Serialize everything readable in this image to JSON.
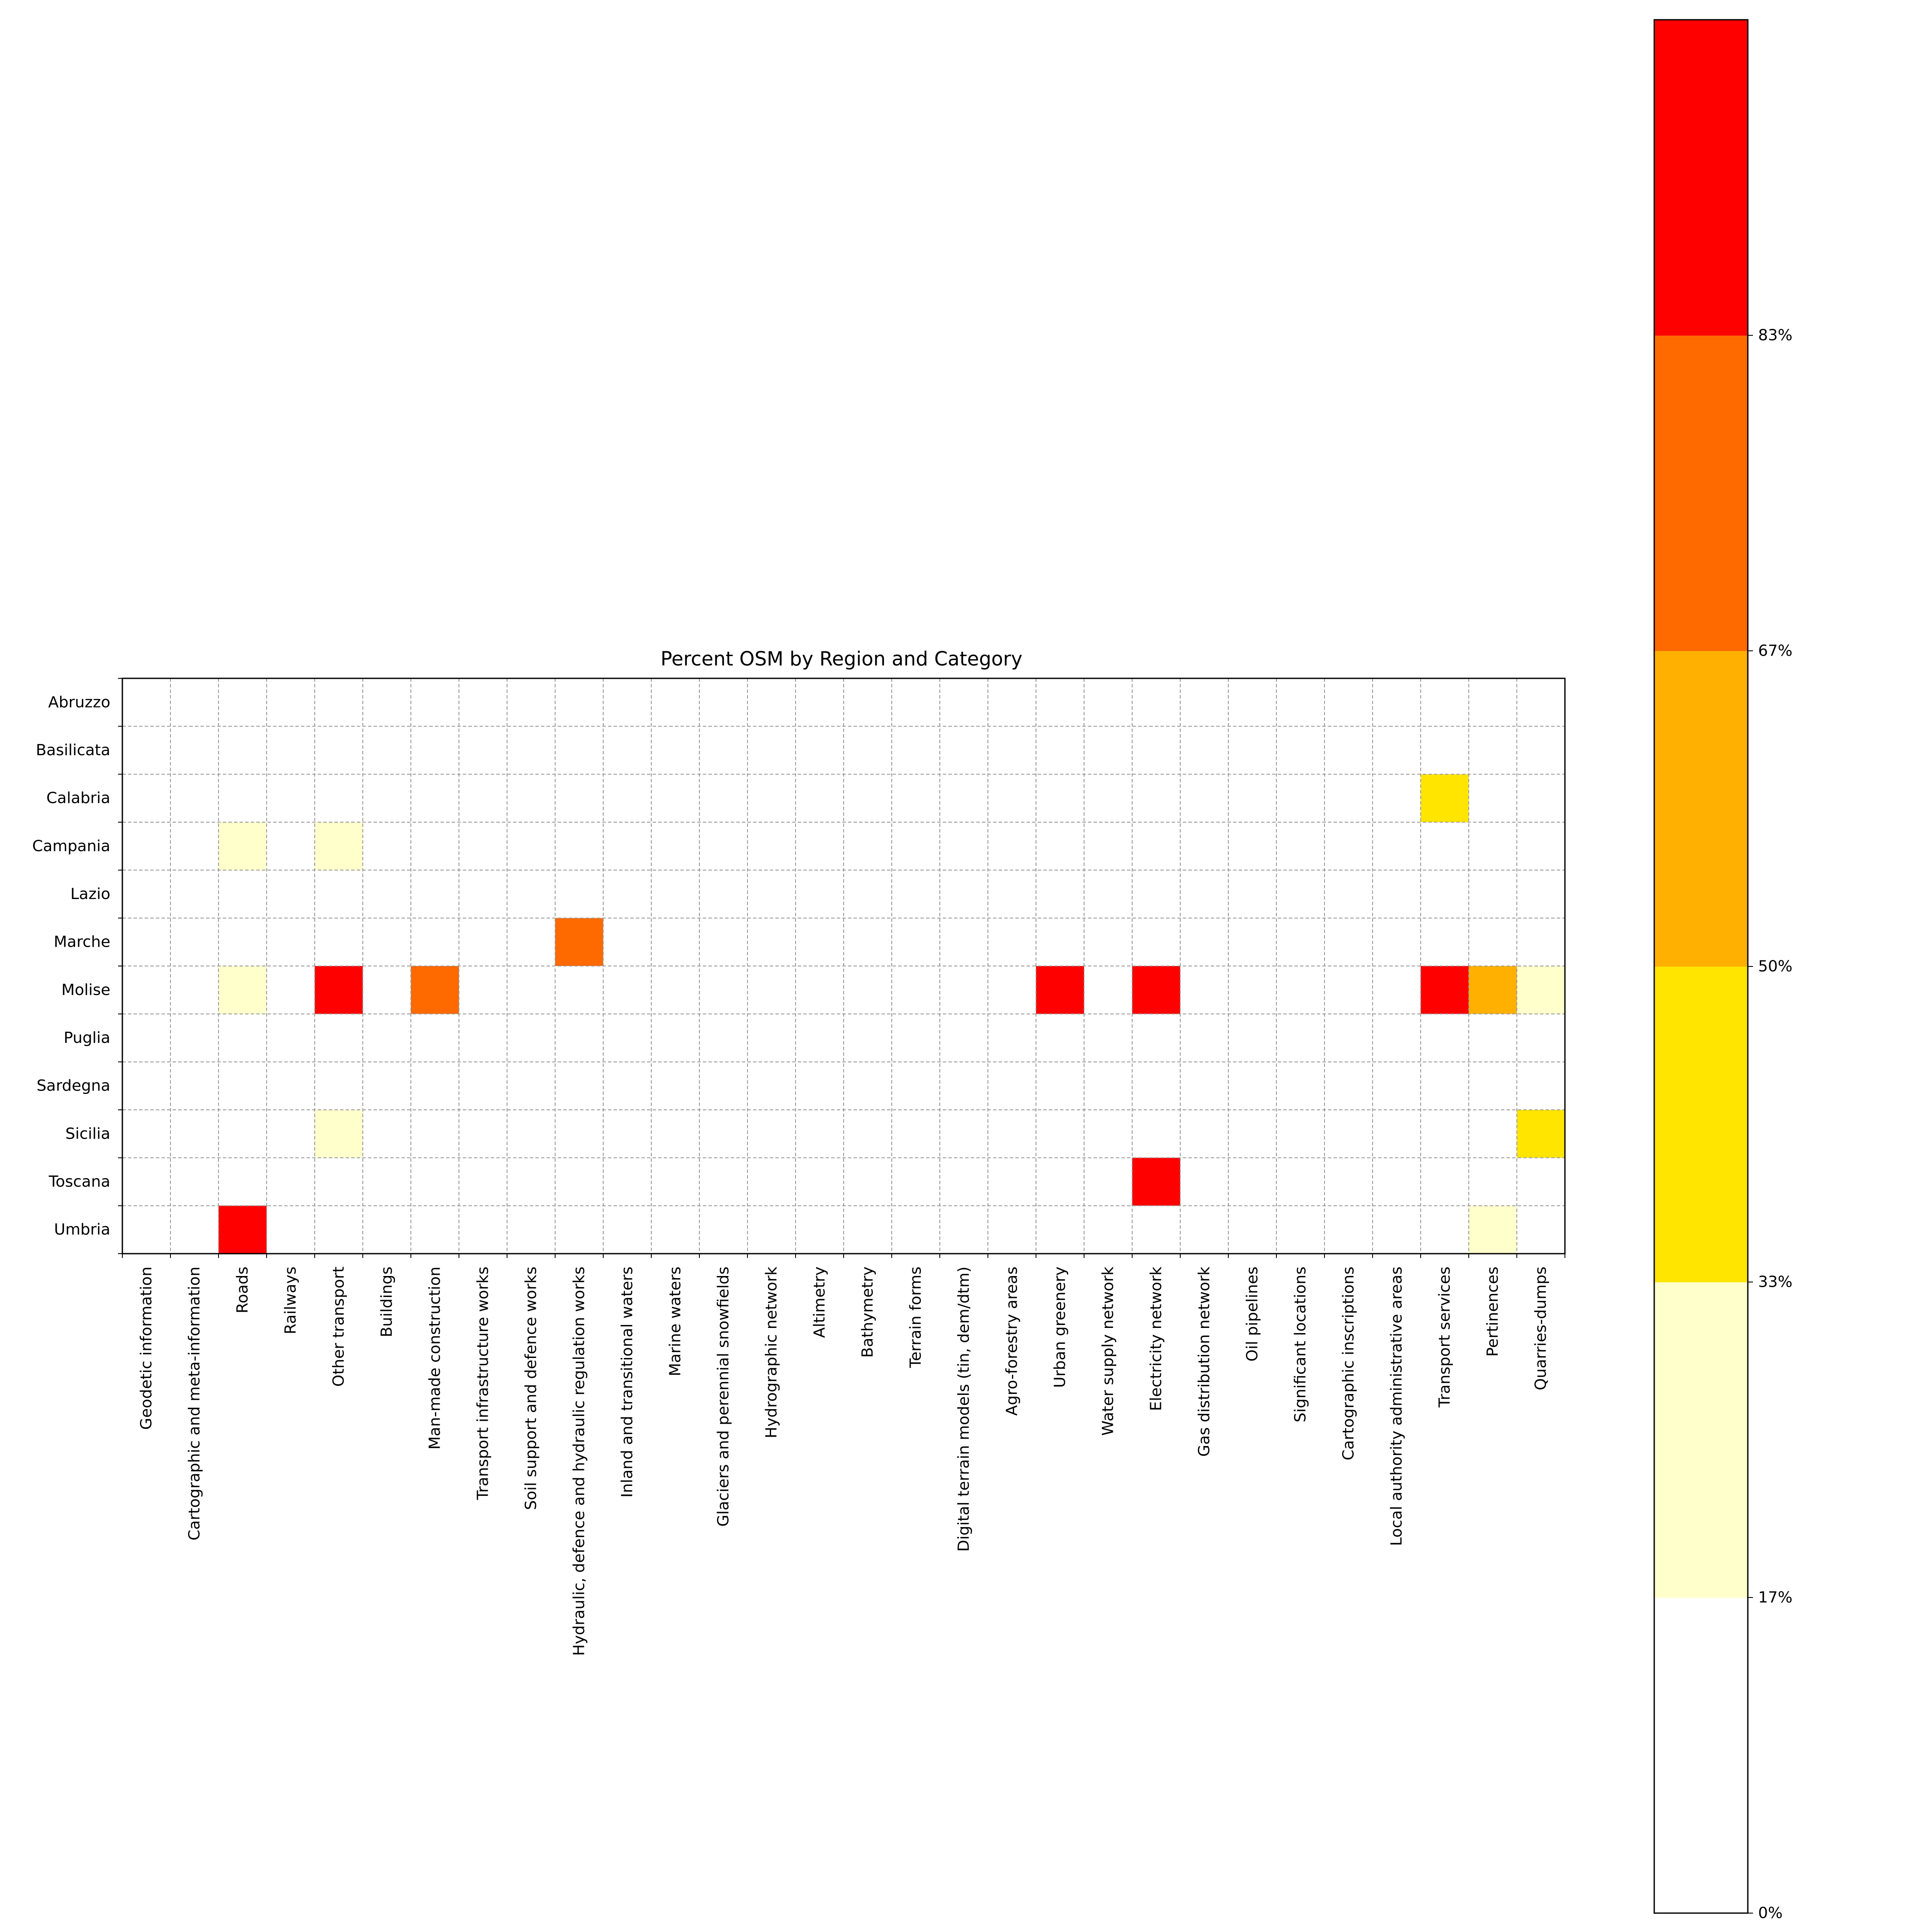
{
  "chart_data": {
    "type": "heatmap",
    "title": "Percent OSM by Region and Category",
    "rows": [
      "Abruzzo",
      "Basilicata",
      "Calabria",
      "Campania",
      "Lazio",
      "Marche",
      "Molise",
      "Puglia",
      "Sardegna",
      "Sicilia",
      "Toscana",
      "Umbria"
    ],
    "columns": [
      "Geodetic information",
      "Cartographic and meta-information",
      "Roads",
      "Railways",
      "Other transport",
      "Buildings",
      "Man-made construction",
      "Transport infrastructure works",
      "Soil support and defence works",
      "Hydraulic, defence and hydraulic regulation works",
      "Inland and transitional waters",
      "Marine waters",
      "Glaciers and perennial snowfields",
      "Hydrographic network",
      "Altimetry",
      "Bathymetry",
      "Terrain forms",
      "Digital terrain models (tin, dem/dtm)",
      "Agro-forestry areas",
      "Urban greenery",
      "Water supply network",
      "Electricity network",
      "Gas distribution network",
      "Oil pipelines",
      "Significant locations",
      "Cartographic inscriptions",
      "Local authority administrative areas",
      "Transport services",
      "Pertinences",
      "Quarries-dumps"
    ],
    "values_percent": [
      [
        0,
        0,
        0,
        0,
        0,
        0,
        0,
        0,
        0,
        0,
        0,
        0,
        0,
        0,
        0,
        0,
        0,
        0,
        0,
        0,
        0,
        0,
        0,
        0,
        0,
        0,
        0,
        0,
        0,
        0
      ],
      [
        0,
        0,
        0,
        0,
        0,
        0,
        0,
        0,
        0,
        0,
        0,
        0,
        0,
        0,
        0,
        0,
        0,
        0,
        0,
        0,
        0,
        0,
        0,
        0,
        0,
        0,
        0,
        0,
        0,
        0
      ],
      [
        0,
        0,
        0,
        0,
        0,
        0,
        0,
        0,
        0,
        0,
        0,
        0,
        0,
        0,
        0,
        0,
        0,
        0,
        0,
        0,
        0,
        0,
        0,
        0,
        0,
        0,
        0,
        45,
        0,
        0
      ],
      [
        0,
        0,
        25,
        0,
        25,
        0,
        0,
        0,
        0,
        0,
        0,
        0,
        0,
        0,
        0,
        0,
        0,
        0,
        0,
        0,
        0,
        0,
        0,
        0,
        0,
        0,
        0,
        0,
        0,
        0
      ],
      [
        0,
        0,
        0,
        0,
        0,
        0,
        0,
        0,
        0,
        0,
        0,
        0,
        0,
        0,
        0,
        0,
        0,
        0,
        0,
        0,
        0,
        0,
        0,
        0,
        0,
        0,
        0,
        0,
        0,
        0
      ],
      [
        0,
        0,
        0,
        0,
        0,
        0,
        0,
        0,
        0,
        75,
        0,
        0,
        0,
        0,
        0,
        0,
        0,
        0,
        0,
        0,
        0,
        0,
        0,
        0,
        0,
        0,
        0,
        0,
        0,
        0
      ],
      [
        0,
        0,
        25,
        0,
        90,
        0,
        75,
        0,
        0,
        0,
        0,
        0,
        0,
        0,
        0,
        0,
        0,
        0,
        0,
        90,
        0,
        90,
        0,
        0,
        0,
        0,
        0,
        90,
        60,
        25
      ],
      [
        0,
        0,
        0,
        0,
        0,
        0,
        0,
        0,
        0,
        0,
        0,
        0,
        0,
        0,
        0,
        0,
        0,
        0,
        0,
        0,
        0,
        0,
        0,
        0,
        0,
        0,
        0,
        0,
        0,
        0
      ],
      [
        0,
        0,
        0,
        0,
        0,
        0,
        0,
        0,
        0,
        0,
        0,
        0,
        0,
        0,
        0,
        0,
        0,
        0,
        0,
        0,
        0,
        0,
        0,
        0,
        0,
        0,
        0,
        0,
        0,
        0
      ],
      [
        0,
        0,
        0,
        0,
        25,
        0,
        0,
        0,
        0,
        0,
        0,
        0,
        0,
        0,
        0,
        0,
        0,
        0,
        0,
        0,
        0,
        0,
        0,
        0,
        0,
        0,
        0,
        0,
        0,
        45
      ],
      [
        0,
        0,
        0,
        0,
        0,
        0,
        0,
        0,
        0,
        0,
        0,
        0,
        0,
        0,
        0,
        0,
        0,
        0,
        0,
        0,
        0,
        90,
        0,
        0,
        0,
        0,
        0,
        0,
        0,
        0
      ],
      [
        0,
        0,
        90,
        0,
        0,
        0,
        0,
        0,
        0,
        0,
        0,
        0,
        0,
        0,
        0,
        0,
        0,
        0,
        0,
        0,
        0,
        0,
        0,
        0,
        0,
        0,
        0,
        0,
        25,
        0
      ]
    ],
    "colorbar": {
      "bins": [
        {
          "from": 0,
          "to": 16.67,
          "color": "#ffffff"
        },
        {
          "from": 16.67,
          "to": 33.33,
          "color": "#ffffcc"
        },
        {
          "from": 33.33,
          "to": 50,
          "color": "#ffe500"
        },
        {
          "from": 50,
          "to": 66.67,
          "color": "#ffb000"
        },
        {
          "from": 66.67,
          "to": 83.33,
          "color": "#ff6a00"
        },
        {
          "from": 83.33,
          "to": 100,
          "color": "#ff0000"
        }
      ],
      "ticks": [
        0,
        16.67,
        33.33,
        50,
        66.67,
        83.33
      ],
      "tick_labels": [
        "0%",
        "17%",
        "33%",
        "50%",
        "67%",
        "83%"
      ]
    },
    "grid": true,
    "grid_style": "dashed",
    "grid_color": "#999999"
  }
}
